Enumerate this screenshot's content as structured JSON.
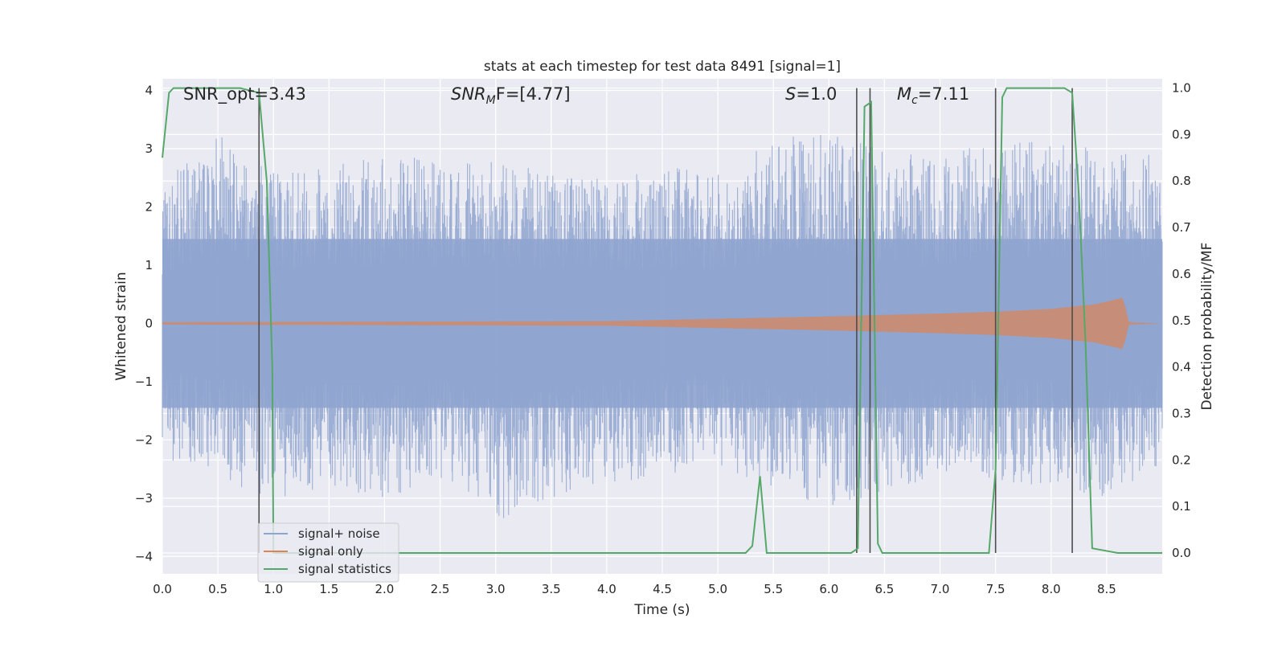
{
  "chart_data": {
    "type": "line",
    "title": "stats at each timestep for test data 8491 [signal=1]",
    "xlabel": "Time (s)",
    "ylabel_left": "Whitened strain",
    "ylabel_right": "Detection probability/MF",
    "xlim": [
      0.0,
      9.0
    ],
    "ylim_left": [
      -4.3,
      4.2
    ],
    "ylim_right": [
      -0.045,
      1.02
    ],
    "x_ticks": [
      0.0,
      0.5,
      1.0,
      1.5,
      2.0,
      2.5,
      3.0,
      3.5,
      4.0,
      4.5,
      5.0,
      5.5,
      6.0,
      6.5,
      7.0,
      7.5,
      8.0,
      8.5
    ],
    "x_tick_labels": [
      "0.0",
      "0.5",
      "1.0",
      "1.5",
      "2.0",
      "2.5",
      "3.0",
      "3.5",
      "4.0",
      "4.5",
      "5.0",
      "5.5",
      "6.0",
      "6.5",
      "7.0",
      "7.5",
      "8.0",
      "8.5"
    ],
    "y_left_ticks": [
      -4,
      -3,
      -2,
      -1,
      0,
      1,
      2,
      3,
      4
    ],
    "y_left_tick_labels": [
      "−4",
      "−3",
      "−2",
      "−1",
      "0",
      "1",
      "2",
      "3",
      "4"
    ],
    "y_right_ticks": [
      0.0,
      0.1,
      0.2,
      0.3,
      0.4,
      0.5,
      0.6,
      0.7,
      0.8,
      0.9,
      1.0
    ],
    "y_right_tick_labels": [
      "0.0",
      "0.1",
      "0.2",
      "0.3",
      "0.4",
      "0.5",
      "0.6",
      "0.7",
      "0.8",
      "0.9",
      "1.0"
    ],
    "grid": true,
    "legend_position": "lower-left",
    "annotations": {
      "snr_opt": "SNR_opt=3.43",
      "snr_mf_main": "SNR",
      "snr_mf_sub": "M",
      "snr_mf_rest": "F=[4.77]",
      "s_main": "S",
      "s_rest": "=1.0",
      "mc_main": "M",
      "mc_sub": "c",
      "mc_rest": "=7.11"
    },
    "series": [
      {
        "name": "signal+ noise",
        "axis": "left",
        "color": "#8fa4cf",
        "envelope": {
          "x": [
            0.0,
            0.5,
            1.0,
            1.5,
            2.0,
            2.5,
            3.0,
            3.5,
            4.0,
            4.5,
            5.0,
            5.5,
            6.0,
            6.5,
            7.0,
            7.5,
            8.0,
            8.5,
            9.0
          ],
          "upper": [
            2.4,
            3.3,
            2.6,
            2.7,
            2.9,
            2.8,
            2.8,
            2.6,
            2.5,
            2.7,
            2.6,
            3.2,
            3.3,
            3.0,
            2.8,
            3.2,
            3.1,
            3.0,
            2.9
          ],
          "lower": [
            -2.3,
            -2.6,
            -3.1,
            -2.8,
            -3.0,
            -2.7,
            -3.4,
            -3.0,
            -2.8,
            -2.6,
            -2.5,
            -2.8,
            -3.2,
            -2.9,
            -2.6,
            -2.7,
            -2.8,
            -3.0,
            -2.4
          ]
        }
      },
      {
        "name": "signal only",
        "axis": "left",
        "color": "#dd8452",
        "envelope": {
          "x": [
            0.0,
            4.0,
            5.0,
            6.0,
            7.0,
            7.5,
            8.0,
            8.4,
            8.6,
            8.65,
            8.7,
            9.0
          ],
          "amplitude": [
            0.02,
            0.04,
            0.08,
            0.12,
            0.17,
            0.2,
            0.25,
            0.33,
            0.42,
            0.45,
            0.02,
            0.0
          ]
        }
      },
      {
        "name": "signal statistics",
        "axis": "right",
        "color": "#55a868",
        "x": [
          0.0,
          0.06,
          0.1,
          0.3,
          0.5,
          0.7,
          0.87,
          0.94,
          0.99,
          1.0,
          1.2,
          1.6,
          2.0,
          3.0,
          4.0,
          5.0,
          5.25,
          5.31,
          5.38,
          5.44,
          5.5,
          6.0,
          6.2,
          6.26,
          6.32,
          6.38,
          6.44,
          6.48,
          6.6,
          7.0,
          7.44,
          7.5,
          7.56,
          7.6,
          7.8,
          8.0,
          8.12,
          8.19,
          8.25,
          8.31,
          8.37,
          8.6,
          9.0
        ],
        "y": [
          0.85,
          0.99,
          1.0,
          1.0,
          1.0,
          1.0,
          0.99,
          0.8,
          0.4,
          0.0,
          0.0,
          0.0,
          0.0,
          0.0,
          0.0,
          0.0,
          0.0,
          0.015,
          0.165,
          0.0,
          0.0,
          0.0,
          0.0,
          0.01,
          0.96,
          0.97,
          0.02,
          0.0,
          0.0,
          0.0,
          0.0,
          0.18,
          0.98,
          1.0,
          1.0,
          1.0,
          1.0,
          0.99,
          0.77,
          0.45,
          0.01,
          0.0,
          0.0
        ]
      }
    ],
    "vertical_lines": {
      "color": "#4d4d4d",
      "x": [
        0.87,
        6.25,
        6.37,
        7.5,
        8.19
      ]
    }
  }
}
